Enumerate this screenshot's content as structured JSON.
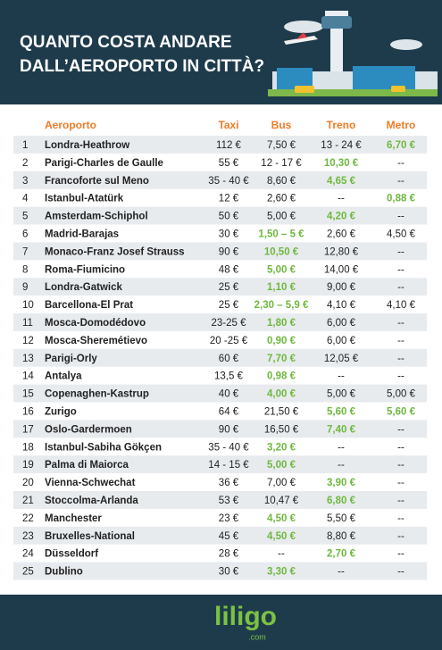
{
  "header": {
    "title_lines": [
      "QUANTO COSTA ANDARE",
      "DALL’AEROPORTO IN CITTÀ?"
    ]
  },
  "table": {
    "columns": [
      "Aeroporto",
      "Taxi",
      "Bus",
      "Treno",
      "Metro"
    ],
    "highlight_color": "#6fb83f",
    "rows": [
      [
        "1",
        "Londra-Heathrow",
        "112 €",
        "7,50 €",
        "13 - 24 €",
        "6,70 €"
      ],
      [
        "2",
        "Parigi-Charles de Gaulle",
        "55 €",
        "12 - 17 €",
        "10,30 €",
        "--"
      ],
      [
        "3",
        "Francoforte sul Meno",
        "35 - 40 €",
        "8,60 €",
        "4,65 €",
        "--"
      ],
      [
        "4",
        "Istanbul-Atatürk",
        "12 €",
        "2,60 €",
        "--",
        "0,88 €"
      ],
      [
        "5",
        "Amsterdam-Schiphol",
        "50 €",
        "5,00 €",
        "4,20 €",
        "--"
      ],
      [
        "6",
        "Madrid-Barajas",
        "30 €",
        "1,50 – 5 €",
        "2,60 €",
        "4,50 €"
      ],
      [
        "7",
        "Monaco-Franz Josef Strauss",
        "90 €",
        "10,50 €",
        "12,80 €",
        "--"
      ],
      [
        "8",
        "Roma-Fiumicino",
        "48 €",
        "5,00 €",
        "14,00 €",
        "--"
      ],
      [
        "9",
        "Londra-Gatwick",
        "25 €",
        "1,10 €",
        "9,00 €",
        "--"
      ],
      [
        "10",
        "Barcellona-El Prat",
        "25 €",
        "2,30 – 5,9 €",
        "4,10 €",
        "4,10 €"
      ],
      [
        "11",
        "Mosca-Domodédovo",
        "23-25 €",
        "1,80 €",
        "6,00 €",
        "--"
      ],
      [
        "12",
        "Mosca-Sheremétievo",
        "20 -25 €",
        "0,90 €",
        "6,00 €",
        "--"
      ],
      [
        "13",
        "Parigi-Orly",
        "60 €",
        "7,70 €",
        "12,05 €",
        "--"
      ],
      [
        "14",
        "Antalya",
        "13,5 €",
        "0,98 €",
        "--",
        "--"
      ],
      [
        "15",
        "Copenaghen-Kastrup",
        "40 €",
        "4,00 €",
        "5,00 €",
        "5,00 €"
      ],
      [
        "16",
        "Zurigo",
        "64 €",
        "21,50 €",
        "5,60 €",
        "5,60 €"
      ],
      [
        "17",
        "Oslo-Gardermoen",
        "90 €",
        "16,50 €",
        "7,40 €",
        "--"
      ],
      [
        "18",
        "Istanbul-Sabiha Gökçen",
        "35 - 40 €",
        "3,20 €",
        "--",
        "--"
      ],
      [
        "19",
        "Palma di Maiorca",
        "14 - 15 €",
        "5,00 €",
        "--",
        "--"
      ],
      [
        "20",
        "Vienna-Schwechat",
        "36 €",
        "7,00 €",
        "3,90 €",
        "--"
      ],
      [
        "21",
        "Stoccolma-Arlanda",
        "53 €",
        "10,47 €",
        "6,80 €",
        "--"
      ],
      [
        "22",
        "Manchester",
        "23 €",
        "4,50 €",
        "5,50 €",
        "--"
      ],
      [
        "23",
        "Bruxelles-National",
        "45 €",
        "4,50 €",
        "8,80 €",
        "--"
      ],
      [
        "24",
        "Düsseldorf",
        "28 €",
        "--",
        "2,70 €",
        "--"
      ],
      [
        "25",
        "Dublino",
        "30 €",
        "3,30 €",
        "--",
        "--"
      ]
    ],
    "highlight": [
      [
        5
      ],
      [
        4
      ],
      [
        4
      ],
      [
        5
      ],
      [
        4
      ],
      [
        3
      ],
      [
        3
      ],
      [
        3
      ],
      [
        3
      ],
      [
        3
      ],
      [
        3
      ],
      [
        3
      ],
      [
        3
      ],
      [
        3
      ],
      [
        3
      ],
      [
        4,
        5
      ],
      [
        4
      ],
      [
        3
      ],
      [
        3
      ],
      [
        4
      ],
      [
        4
      ],
      [
        3
      ],
      [
        3
      ],
      [
        4
      ],
      [
        3
      ]
    ]
  },
  "footer": {
    "logo": "liligo",
    "domain": ".com"
  }
}
